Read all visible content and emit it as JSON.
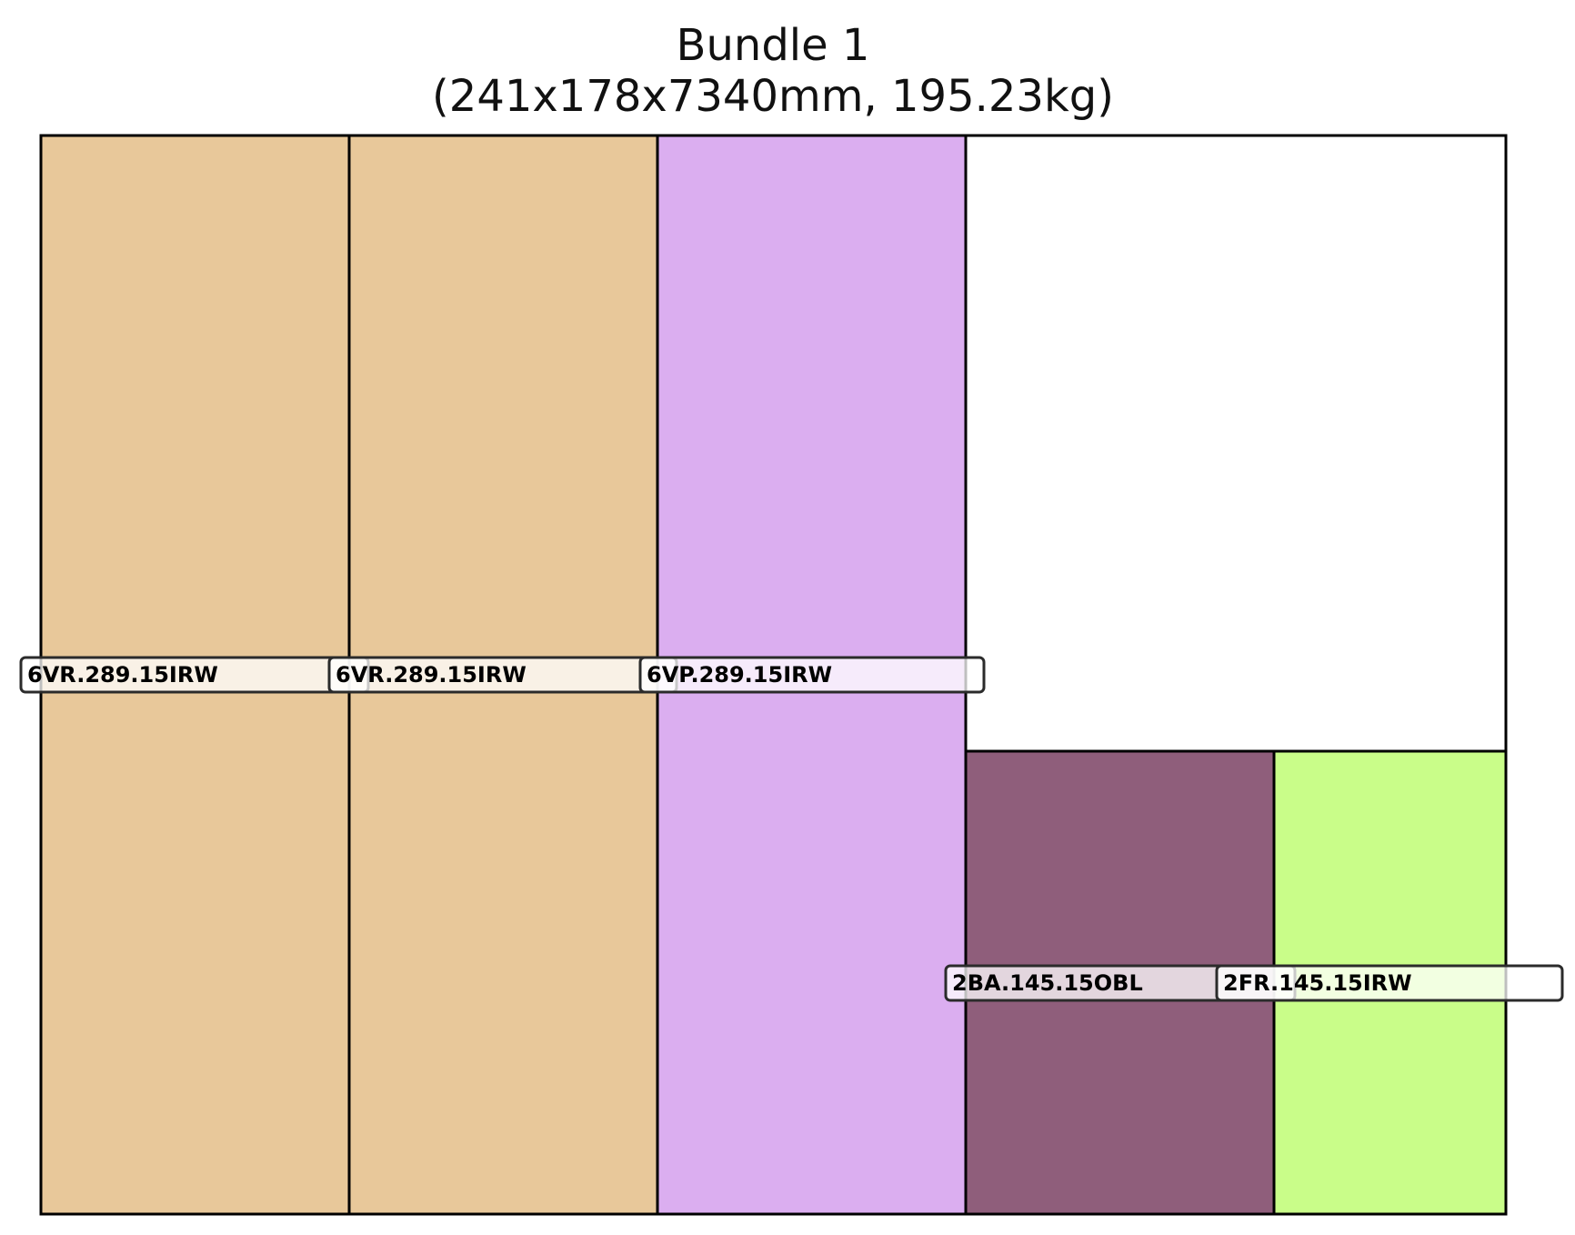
{
  "title": {
    "line1": "Bundle 1",
    "line2": "(241x178x7340mm, 195.23kg)"
  },
  "bundle": {
    "width_mm": 241,
    "height_mm": 178,
    "length_mm": 7340,
    "weight_kg": 195.23
  },
  "pieces": [
    {
      "id": "piece-1",
      "label": "6VR.289.15IRW",
      "color": "#e8c89a"
    },
    {
      "id": "piece-2",
      "label": "6VR.289.15IRW",
      "color": "#e8c89a"
    },
    {
      "id": "piece-3",
      "label": "6VP.289.15IRW",
      "color": "#dbaef0"
    },
    {
      "id": "piece-4",
      "label": "2BA.145.15OBL",
      "color": "#8f5e7b"
    },
    {
      "id": "piece-5",
      "label": "2FR.145.15IRW",
      "color": "#c9fd89"
    }
  ],
  "colors": {
    "outline": "#000000",
    "label_border": "#2b2b2b",
    "label_fill": "#ffffff",
    "empty_space": "#ffffff"
  }
}
